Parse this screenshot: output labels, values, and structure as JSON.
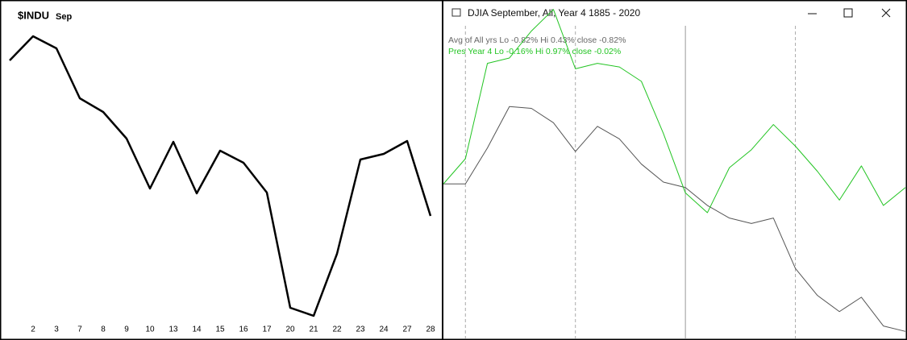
{
  "window_title": "DJIA September,  All,  Year 4   1885 -  2020",
  "chart_data": [
    {
      "type": "line",
      "title": "$INDU",
      "subtitle": "Sep",
      "categories": [
        null,
        "2",
        "3",
        "7",
        "8",
        "9",
        "10",
        "13",
        "14",
        "15",
        "16",
        "17",
        "20",
        "21",
        "22",
        "23",
        "24",
        "27",
        "28"
      ],
      "values": [
        325,
        355,
        340,
        278,
        261,
        228,
        166,
        224,
        160,
        213,
        198,
        161,
        18,
        8,
        85,
        202,
        209,
        225,
        132
      ],
      "color": "#000000",
      "ylim": [
        0,
        400
      ]
    },
    {
      "type": "line",
      "categories": [
        null,
        null,
        null,
        null,
        null,
        null,
        null,
        null,
        null,
        null,
        null,
        null,
        null,
        null,
        null,
        null,
        null,
        null,
        null,
        null,
        null,
        null
      ],
      "series": [
        {
          "name": "Avg of All yrs  Lo -0.82%  Hi 0.43%  close -0.82%",
          "color": "#555555",
          "values": [
            0,
            0,
            0.2,
            0.43,
            0.42,
            0.34,
            0.18,
            0.32,
            0.25,
            0.11,
            0.01,
            -0.02,
            -0.12,
            -0.19,
            -0.22,
            -0.19,
            -0.47,
            -0.62,
            -0.71,
            -0.63,
            -0.79,
            -0.82
          ]
        },
        {
          "name": "Pres Year 4  Lo -0.16%  Hi 0.97%  close -0.02%",
          "color": "#22c422",
          "values": [
            0,
            0.14,
            0.67,
            0.7,
            0.85,
            0.97,
            0.64,
            0.67,
            0.65,
            0.57,
            0.28,
            -0.05,
            -0.16,
            0.09,
            0.19,
            0.33,
            0.21,
            0.07,
            -0.09,
            0.1,
            -0.12,
            -0.02
          ]
        }
      ],
      "ylim": [
        -0.85,
        1.0
      ]
    }
  ]
}
